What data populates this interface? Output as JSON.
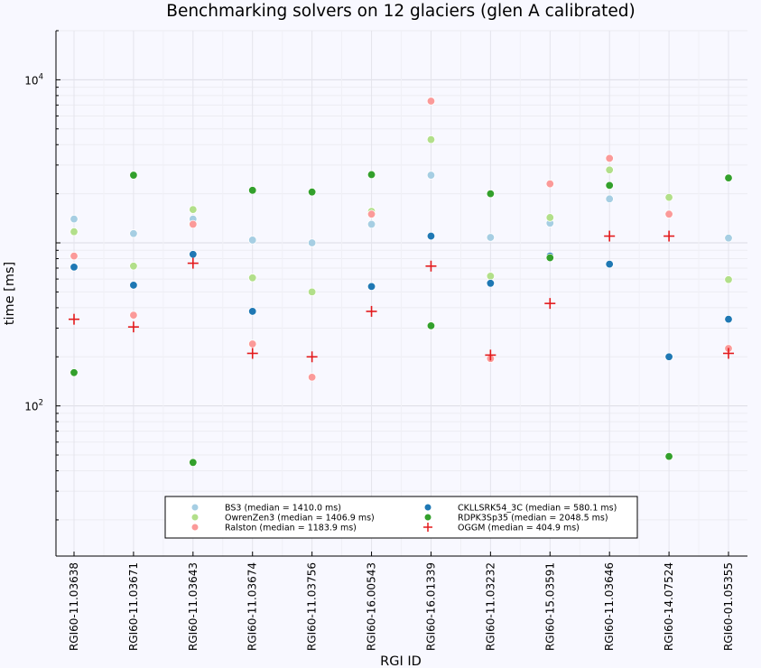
{
  "chart_data": {
    "type": "scatter",
    "title": "Benchmarking solvers on 12 glaciers (glen A calibrated)",
    "xlabel": "RGI ID",
    "ylabel": "time [ms]",
    "yscale": "log",
    "ylim": [
      12,
      20000
    ],
    "y_tick_labels": [
      {
        "value": 100,
        "label": "10",
        "exp": "2"
      },
      {
        "value": 10000,
        "label": "10",
        "exp": "4"
      }
    ],
    "grid": true,
    "legend_position": "bottom-center",
    "categories": [
      "RGI60-11.03638",
      "RGI60-11.03671",
      "RGI60-11.03643",
      "RGI60-11.03674",
      "RGI60-11.03756",
      "RGI60-16.00543",
      "RGI60-16.01339",
      "RGI60-11.03232",
      "RGI60-15.03591",
      "RGI60-11.03646",
      "RGI60-14.07524",
      "RGI60-01.05355"
    ],
    "series": [
      {
        "name": "BS3 (median = 1410.0 ms)",
        "marker": "circle",
        "color": "#a6cee3",
        "values": [
          1400,
          1140,
          1400,
          1040,
          1000,
          1300,
          2600,
          1080,
          1320,
          1860,
          null,
          1070
        ]
      },
      {
        "name": "OwrenZen3 (median = 1406.9 ms)",
        "marker": "circle",
        "color": "#b2df8a",
        "values": [
          1170,
          720,
          1600,
          610,
          500,
          1560,
          4300,
          625,
          1430,
          2800,
          1900,
          595
        ]
      },
      {
        "name": "Ralston (median = 1183.9 ms)",
        "marker": "circle",
        "color": "#fb9a99",
        "values": [
          830,
          360,
          1300,
          240,
          150,
          1500,
          7400,
          195,
          2300,
          3300,
          1500,
          225
        ]
      },
      {
        "name": "CKLLSRK54_3C (median = 580.1 ms)",
        "marker": "circle",
        "color": "#1f78b4",
        "values": [
          710,
          550,
          850,
          380,
          null,
          540,
          1100,
          565,
          830,
          740,
          200,
          340
        ]
      },
      {
        "name": "RDPK3Sp35 (median = 2048.5 ms)",
        "marker": "circle",
        "color": "#33a02c",
        "values": [
          160,
          2600,
          45,
          2100,
          2050,
          2620,
          310,
          2000,
          810,
          2250,
          49,
          2500
        ]
      },
      {
        "name": "OGGM (median = 404.9 ms)",
        "marker": "cross",
        "color": "#e31a1c",
        "values": [
          340,
          305,
          750,
          210,
          200,
          380,
          720,
          205,
          425,
          1100,
          1100,
          210
        ]
      }
    ]
  }
}
